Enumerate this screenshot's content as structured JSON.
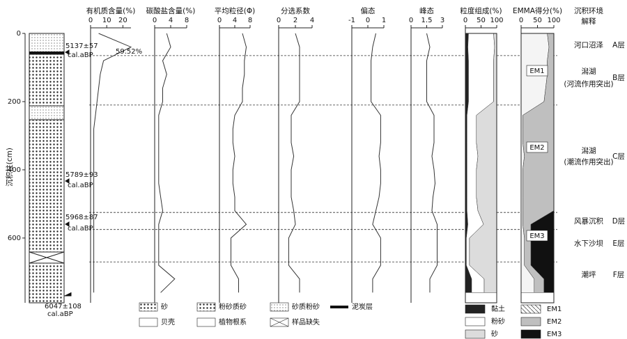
{
  "depth": {
    "label": "沉积柱(cm)",
    "ylim": [
      0,
      790
    ],
    "yticks": [
      0,
      200,
      400,
      600
    ],
    "x": [
      0,
      40,
      80,
      120,
      160,
      200,
      240,
      280,
      320,
      360,
      400,
      440,
      480,
      520,
      560,
      600,
      640,
      680,
      720,
      760
    ],
    "boundaries": [
      65,
      210,
      525,
      575,
      670
    ]
  },
  "chart_data": [
    {
      "type": "line",
      "title": "有机质含量(%)",
      "xlim": [
        0,
        25
      ],
      "xticks": [
        0,
        10,
        20
      ],
      "color": "#333",
      "annotation": "59.52%",
      "values": [
        5,
        25,
        8,
        6,
        5,
        4,
        3,
        2,
        2,
        2,
        2,
        2,
        2,
        2,
        2,
        2,
        2,
        2,
        2,
        2
      ]
    },
    {
      "type": "line",
      "title": "碳酸盐含量(%)",
      "xlim": [
        0,
        8
      ],
      "xticks": [
        0,
        4,
        8
      ],
      "color": "#333",
      "values": [
        3,
        4,
        2,
        3,
        2,
        2,
        1,
        1,
        1,
        1,
        1,
        1,
        1.5,
        2,
        1,
        1,
        1,
        1,
        5,
        1.5
      ]
    },
    {
      "type": "line",
      "title": "平均粒径(Φ)",
      "xlim": [
        0,
        8
      ],
      "xticks": [
        0,
        4,
        8
      ],
      "color": "#333",
      "values": [
        6,
        7,
        6.5,
        6.5,
        6,
        6,
        4,
        3.5,
        3.5,
        4,
        3.5,
        3.5,
        4,
        4,
        7,
        3,
        3,
        3,
        5,
        5
      ]
    },
    {
      "type": "line",
      "title": "分选系数",
      "xlim": [
        0,
        4
      ],
      "xticks": [
        0,
        2,
        4
      ],
      "color": "#333",
      "values": [
        2,
        2.5,
        2.5,
        2.5,
        2.5,
        2.5,
        1.5,
        1.5,
        1.5,
        1.8,
        1.5,
        1.5,
        1.5,
        1.8,
        2,
        1.2,
        1.2,
        1.2,
        2.5,
        2.5
      ]
    },
    {
      "type": "line",
      "title": "偏态",
      "xlim": [
        -1,
        1
      ],
      "xticks": [
        -1,
        0,
        1
      ],
      "color": "#333",
      "values": [
        0.5,
        0.3,
        0.2,
        0.2,
        0.2,
        0.2,
        0.8,
        0.8,
        0.8,
        0.7,
        0.8,
        0.8,
        0.7,
        0.5,
        0.3,
        0.8,
        0.8,
        0.8,
        0.3,
        0.3
      ]
    },
    {
      "type": "line",
      "title": "峰态",
      "xlim": [
        0,
        3
      ],
      "xticks": [
        0,
        1.5,
        3
      ],
      "color": "#333",
      "values": [
        1.5,
        1.8,
        1.5,
        1.5,
        1.5,
        1.5,
        2.2,
        2.2,
        2.2,
        2,
        2.2,
        2.3,
        2.1,
        2,
        2.5,
        2.5,
        2.5,
        2.5,
        1.8,
        1.8
      ]
    },
    {
      "type": "stacked-area",
      "title": "粒度组成(%)",
      "xlim": [
        0,
        100
      ],
      "xticks": [
        0,
        50,
        100
      ],
      "series": [
        {
          "name": "黏土",
          "color": "#222222",
          "values": [
            10,
            8,
            10,
            10,
            10,
            10,
            5,
            5,
            5,
            5,
            5,
            5,
            5,
            5,
            8,
            3,
            3,
            3,
            20,
            20
          ]
        },
        {
          "name": "粉砂",
          "color": "#ffffff",
          "values": [
            80,
            85,
            80,
            80,
            80,
            80,
            30,
            30,
            30,
            35,
            30,
            30,
            30,
            35,
            50,
            10,
            10,
            10,
            40,
            40
          ]
        },
        {
          "name": "砂",
          "color": "#dcdcdc",
          "values": [
            10,
            7,
            10,
            10,
            10,
            10,
            65,
            65,
            65,
            60,
            65,
            65,
            65,
            60,
            42,
            87,
            87,
            87,
            40,
            40
          ]
        }
      ]
    },
    {
      "type": "stacked-area",
      "title": "EMMA得分(%)",
      "xlim": [
        0,
        100
      ],
      "xticks": [
        0,
        50,
        100
      ],
      "series": [
        {
          "name": "EM1",
          "color": "#f4f4f4",
          "values": [
            80,
            85,
            80,
            80,
            75,
            70,
            5,
            5,
            5,
            10,
            5,
            5,
            5,
            5,
            5,
            10,
            10,
            10,
            40,
            40
          ]
        },
        {
          "name": "EM2",
          "color": "#bfbfbf",
          "values": [
            20,
            15,
            20,
            20,
            25,
            30,
            95,
            95,
            95,
            90,
            95,
            95,
            95,
            95,
            25,
            20,
            20,
            20,
            30,
            30
          ]
        },
        {
          "name": "EM3",
          "color": "#111111",
          "values": [
            0,
            0,
            0,
            0,
            0,
            0,
            0,
            0,
            0,
            0,
            0,
            0,
            0,
            0,
            70,
            70,
            70,
            70,
            30,
            30
          ]
        }
      ]
    }
  ],
  "dates": [
    {
      "label": "5137±57",
      "unit": "cal.aBP"
    },
    {
      "label": "5789±93",
      "unit": "cal.aBP"
    },
    {
      "label": "5968±87",
      "unit": "cal.aBP"
    },
    {
      "label": "6047±108",
      "unit": "cal.aBP"
    }
  ],
  "interpretation": {
    "title": "沉积环境",
    "subtitle": "解释",
    "layers": [
      {
        "env": "河口沼泽",
        "note": "",
        "layer": "A层"
      },
      {
        "env": "潟湖",
        "note": "(河流作用突出)",
        "layer": "B层"
      },
      {
        "env": "潟湖",
        "note": "(潮流作用突出)",
        "layer": "C层"
      },
      {
        "env": "风暴沉积",
        "note": "",
        "layer": "D层"
      },
      {
        "env": "水下沙坝",
        "note": "",
        "layer": "E层"
      },
      {
        "env": "潮坪",
        "note": "",
        "layer": "F层"
      }
    ]
  },
  "lithology_legend": [
    "砂",
    "粉砂质砂",
    "砂质粉砂",
    "泥炭层",
    "贝壳",
    "植物根系",
    "样品缺失"
  ]
}
